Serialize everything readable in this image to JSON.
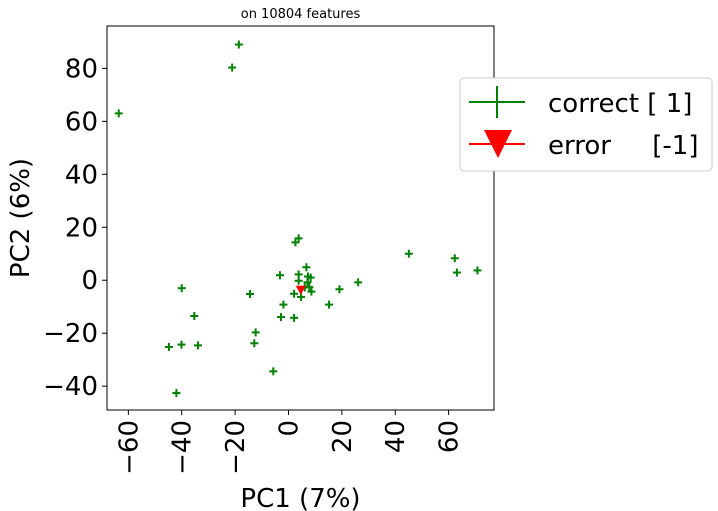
{
  "chart_data": {
    "type": "scatter",
    "title": "on 10804 features",
    "xlabel": "PC1 (7%)",
    "ylabel": "PC2 (6%)",
    "xlim": [
      -68,
      77
    ],
    "ylim": [
      -49,
      96
    ],
    "xticks": [
      -60,
      -40,
      -20,
      0,
      20,
      40,
      60
    ],
    "xtick_labels": [
      "−60",
      "−40",
      "−20",
      "0",
      "20",
      "40",
      "60"
    ],
    "yticks": [
      -40,
      -20,
      0,
      20,
      40,
      60,
      80
    ],
    "ytick_labels": [
      "−40",
      "−20",
      "0",
      "20",
      "40",
      "60",
      "80"
    ],
    "grid": false,
    "legend_position": "outside-right-top",
    "series": [
      {
        "name": "correct [ 1]",
        "marker": "plus",
        "color": "#008000",
        "points": [
          [
            -63.6,
            63.0
          ],
          [
            -21.1,
            80.3
          ],
          [
            -18.6,
            89.0
          ],
          [
            -40.0,
            -3.0
          ],
          [
            -35.3,
            -13.5
          ],
          [
            -33.9,
            -24.6
          ],
          [
            -40.1,
            -24.3
          ],
          [
            -44.8,
            -25.2
          ],
          [
            -42.0,
            -42.6
          ],
          [
            -14.4,
            -5.2
          ],
          [
            -12.3,
            -19.7
          ],
          [
            -12.8,
            -23.8
          ],
          [
            -5.7,
            -34.4
          ],
          [
            -2.8,
            -13.9
          ],
          [
            -3.2,
            1.9
          ],
          [
            -1.9,
            -9.2
          ],
          [
            2.1,
            -14.2
          ],
          [
            2.1,
            -5.1
          ],
          [
            2.6,
            14.3
          ],
          [
            3.8,
            15.8
          ],
          [
            3.8,
            2.2
          ],
          [
            3.8,
            -0.2
          ],
          [
            4.7,
            -6.3
          ],
          [
            6.1,
            -2.7
          ],
          [
            6.7,
            4.9
          ],
          [
            7.1,
            -0.8
          ],
          [
            7.3,
            1.4
          ],
          [
            7.8,
            -2.6
          ],
          [
            8.3,
            1.0
          ],
          [
            8.6,
            -4.3
          ],
          [
            15.2,
            -9.2
          ],
          [
            19.1,
            -3.4
          ],
          [
            26.1,
            -0.8
          ],
          [
            45.1,
            10.0
          ],
          [
            62.3,
            8.3
          ],
          [
            63.1,
            2.9
          ],
          [
            70.8,
            3.7
          ]
        ]
      },
      {
        "name": "error     [-1]",
        "marker": "triangle-down",
        "color": "#ff0000",
        "points": [
          [
            4.6,
            -3.8
          ]
        ]
      }
    ]
  }
}
